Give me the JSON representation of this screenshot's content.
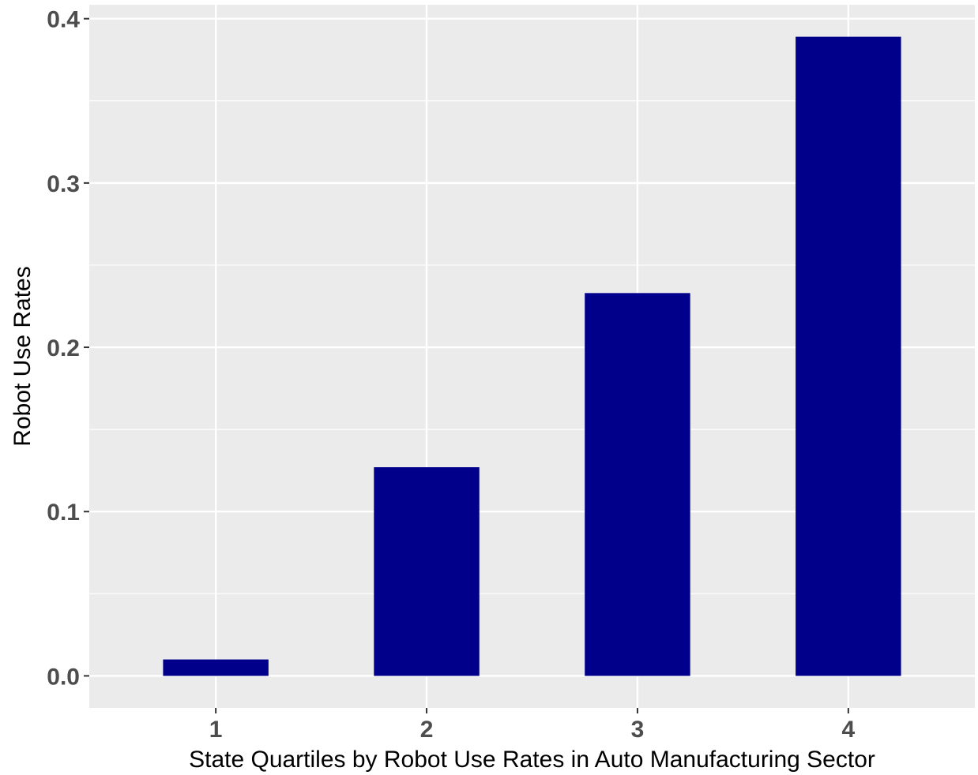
{
  "chart_data": {
    "type": "bar",
    "title": "",
    "xlabel": "State Quartiles by Robot Use Rates in Auto Manufacturing Sector",
    "ylabel": "Robot Use Rates",
    "categories": [
      "1",
      "2",
      "3",
      "4"
    ],
    "values": [
      0.01,
      0.127,
      0.233,
      0.389
    ],
    "ylim": [
      -0.0195,
      0.4085
    ],
    "yticks": [
      0.0,
      0.1,
      0.2,
      0.3,
      0.4
    ],
    "ytick_labels": [
      "0.0",
      "0.1",
      "0.2",
      "0.3",
      "0.4"
    ],
    "grid": true,
    "legend": "none",
    "colors": {
      "bar": "#00008B",
      "panel": "#EBEBEB",
      "grid": "#FFFFFF",
      "tick_text": "#4D4D4D",
      "title_text": "#000000"
    }
  }
}
